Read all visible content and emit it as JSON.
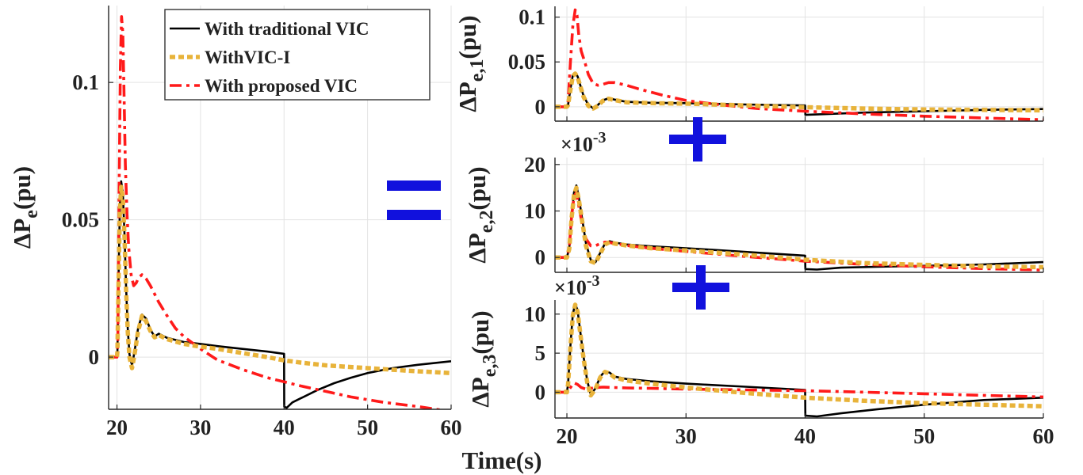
{
  "colors": {
    "traditional": "#000000",
    "vic_i": "#E8B33A",
    "proposed": "#FF1A1A",
    "operator": "#1111DD",
    "grid": "#E3E3E3",
    "axis": "#262626"
  },
  "operators": {
    "equals": "=",
    "plus1": "+",
    "plus2": "+"
  },
  "xlabel": "Time(s)",
  "chart_data": [
    {
      "id": "total",
      "type": "line",
      "title": "",
      "ylabel": "ΔP_e(pu)",
      "ylabel_base": "ΔP",
      "ylabel_sub": "e",
      "ylabel_tail": "(pu)",
      "exponent_label": "",
      "xlim": [
        19,
        60
      ],
      "ylim": [
        -0.019,
        0.128
      ],
      "xticks": [
        20,
        30,
        40,
        50,
        60
      ],
      "yticks": [
        0,
        0.05,
        0.1
      ],
      "ytick_labels": [
        "0",
        "0.05",
        "0.1"
      ],
      "xtick_labels": [
        "20",
        "30",
        "40",
        "50",
        "60"
      ],
      "grid": true,
      "legend": {
        "position": "top-right",
        "entries": [
          "With traditional VIC",
          "WithVIC-I",
          "With proposed VIC"
        ]
      },
      "series": [
        {
          "name": "With traditional VIC",
          "style": "solid",
          "x": [
            19,
            20,
            20.05,
            20.2,
            20.35,
            20.5,
            20.7,
            20.9,
            21.1,
            21.3,
            21.5,
            21.8,
            22.1,
            22.5,
            23.0,
            23.5,
            24.0,
            24.5,
            25.0,
            26,
            28,
            30,
            32,
            35,
            38,
            40,
            40.02,
            40.3,
            41,
            42,
            44,
            46,
            48,
            50,
            53,
            56,
            60
          ],
          "y": [
            0,
            0,
            0.002,
            0.03,
            0.055,
            0.064,
            0.06,
            0.045,
            0.025,
            0.01,
            0.001,
            -0.003,
            0.002,
            0.01,
            0.0155,
            0.014,
            0.01,
            0.0075,
            0.0085,
            0.007,
            0.0055,
            0.0048,
            0.004,
            0.003,
            0.002,
            0.0012,
            -0.018,
            -0.0185,
            -0.0165,
            -0.015,
            -0.012,
            -0.0095,
            -0.0075,
            -0.0058,
            -0.004,
            -0.0028,
            -0.0015
          ]
        },
        {
          "name": "WithVIC-I",
          "style": "dotted",
          "x": [
            19,
            20,
            20.05,
            20.2,
            20.35,
            20.5,
            20.7,
            20.9,
            21.1,
            21.3,
            21.5,
            21.8,
            22.1,
            22.5,
            23.0,
            23.5,
            24.0,
            24.5,
            25.0,
            26,
            28,
            30,
            32,
            35,
            38,
            40,
            42,
            45,
            50,
            55,
            60
          ],
          "y": [
            0,
            0,
            0.002,
            0.028,
            0.053,
            0.062,
            0.058,
            0.044,
            0.024,
            0.009,
            0.0,
            -0.004,
            0.001,
            0.009,
            0.015,
            0.013,
            0.0095,
            0.0072,
            0.008,
            0.0065,
            0.0048,
            0.0038,
            0.003,
            0.0015,
            0.0,
            -0.0012,
            -0.002,
            -0.003,
            -0.004,
            -0.005,
            -0.0058
          ]
        },
        {
          "name": "With proposed VIC",
          "style": "dashdot",
          "x": [
            19,
            20,
            20.1,
            20.25,
            20.4,
            20.55,
            20.7,
            20.85,
            21.0,
            21.2,
            21.4,
            21.7,
            22.0,
            22.3,
            22.6,
            23.0,
            23.5,
            24.0,
            25,
            26,
            27,
            28,
            30,
            32,
            35,
            38,
            40,
            42,
            45,
            48,
            52,
            56,
            60
          ],
          "y": [
            0,
            0,
            0.005,
            0.06,
            0.105,
            0.124,
            0.118,
            0.095,
            0.07,
            0.052,
            0.04,
            0.03,
            0.026,
            0.027,
            0.029,
            0.03,
            0.0285,
            0.026,
            0.02,
            0.015,
            0.0105,
            0.0075,
            0.003,
            -0.001,
            -0.0045,
            -0.0075,
            -0.009,
            -0.0105,
            -0.0125,
            -0.0145,
            -0.0165,
            -0.018,
            -0.0198
          ]
        }
      ]
    },
    {
      "id": "gen1",
      "type": "line",
      "title": "",
      "ylabel": "ΔP_e,1(pu)",
      "ylabel_base": "ΔP",
      "ylabel_sub": "e,1",
      "ylabel_tail": "(pu)",
      "exponent_label": "",
      "xlim": [
        19,
        60
      ],
      "ylim": [
        -0.016,
        0.112
      ],
      "xticks": [
        20,
        30,
        40,
        50,
        60
      ],
      "yticks": [
        0,
        0.05,
        0.1
      ],
      "ytick_labels": [
        "0",
        "0.05",
        "0.1"
      ],
      "xtick_labels": [],
      "grid": true,
      "series": [
        {
          "name": "With traditional VIC",
          "style": "solid",
          "x": [
            19,
            20,
            20.1,
            20.3,
            20.5,
            20.7,
            20.9,
            21.1,
            21.4,
            21.8,
            22.2,
            22.6,
            23.0,
            23.5,
            24.0,
            25,
            27,
            30,
            35,
            40,
            40.02,
            42,
            45,
            50,
            55,
            60
          ],
          "y": [
            0,
            0,
            0.002,
            0.02,
            0.035,
            0.038,
            0.034,
            0.025,
            0.012,
            0.002,
            -0.0015,
            0.002,
            0.007,
            0.0095,
            0.008,
            0.0055,
            0.0045,
            0.004,
            0.0025,
            0.0015,
            -0.009,
            -0.008,
            -0.0065,
            -0.005,
            -0.0035,
            -0.0025
          ]
        },
        {
          "name": "WithVIC-I",
          "style": "dotted",
          "x": [
            19,
            20,
            20.1,
            20.3,
            20.5,
            20.7,
            20.9,
            21.1,
            21.4,
            21.8,
            22.2,
            22.6,
            23.0,
            23.5,
            24.0,
            25,
            27,
            30,
            35,
            40,
            45,
            50,
            55,
            60
          ],
          "y": [
            0,
            0,
            0.002,
            0.019,
            0.034,
            0.037,
            0.033,
            0.024,
            0.011,
            0.001,
            -0.002,
            0.001,
            0.0065,
            0.009,
            0.0075,
            0.005,
            0.004,
            0.0035,
            0.0015,
            -0.0005,
            -0.002,
            -0.003,
            -0.0035,
            -0.004
          ]
        },
        {
          "name": "With proposed VIC",
          "style": "dashdot",
          "x": [
            19,
            20,
            20.1,
            20.3,
            20.5,
            20.7,
            20.85,
            21.0,
            21.2,
            21.5,
            21.8,
            22.2,
            22.6,
            23.0,
            23.5,
            24.0,
            25,
            26,
            28,
            30,
            33,
            36,
            40,
            45,
            50,
            55,
            60
          ],
          "y": [
            0,
            0,
            0.005,
            0.05,
            0.09,
            0.108,
            0.102,
            0.08,
            0.062,
            0.05,
            0.036,
            0.026,
            0.024,
            0.025,
            0.027,
            0.027,
            0.024,
            0.02,
            0.013,
            0.007,
            0.002,
            -0.002,
            -0.005,
            -0.008,
            -0.0105,
            -0.0125,
            -0.0145
          ]
        }
      ]
    },
    {
      "id": "gen2",
      "type": "line",
      "title": "",
      "ylabel": "ΔP_e,2(pu)",
      "ylabel_base": "ΔP",
      "ylabel_sub": "e,2",
      "ylabel_tail": "(pu)",
      "exponent_label": "×10",
      "exponent_power": "-3",
      "xlim": [
        19,
        60
      ],
      "ylim": [
        -3.2,
        21.5
      ],
      "xticks": [
        20,
        30,
        40,
        50,
        60
      ],
      "yticks": [
        0,
        10,
        20
      ],
      "ytick_labels": [
        "0",
        "10",
        "20"
      ],
      "xtick_labels": [],
      "grid": true,
      "series": [
        {
          "name": "With traditional VIC",
          "style": "solid",
          "x": [
            19,
            20,
            20.2,
            20.4,
            20.6,
            20.8,
            21.0,
            21.3,
            21.6,
            22.0,
            22.4,
            22.8,
            23.2,
            23.6,
            24.0,
            25,
            27,
            30,
            35,
            40,
            40.02,
            41,
            43,
            46,
            50,
            55,
            60
          ],
          "y": [
            0,
            0,
            2,
            9,
            14,
            15.5,
            13,
            8,
            3,
            -0.5,
            -1,
            1,
            3,
            3.5,
            3.2,
            2.8,
            2.4,
            2.0,
            1.2,
            0.4,
            -2.5,
            -2.6,
            -2.2,
            -2.0,
            -1.8,
            -1.5,
            -1.0
          ]
        },
        {
          "name": "WithVIC-I",
          "style": "dotted",
          "x": [
            19,
            20,
            20.2,
            20.4,
            20.6,
            20.8,
            21.0,
            21.3,
            21.6,
            22.0,
            22.4,
            22.8,
            23.2,
            23.6,
            24.0,
            25,
            27,
            30,
            35,
            40,
            45,
            50,
            55,
            60
          ],
          "y": [
            0,
            0,
            1.8,
            8.5,
            13.5,
            15,
            12.5,
            7.5,
            2.5,
            -0.8,
            -1.2,
            0.8,
            2.8,
            3.3,
            3.0,
            2.6,
            2.0,
            1.5,
            0.6,
            -0.5,
            -1.2,
            -1.6,
            -1.9,
            -2.1
          ]
        },
        {
          "name": "With proposed VIC",
          "style": "dashdot",
          "x": [
            19,
            20,
            20.2,
            20.4,
            20.6,
            20.8,
            21.0,
            21.3,
            21.6,
            22.0,
            22.4,
            22.8,
            23.2,
            23.6,
            24.0,
            25,
            27,
            30,
            35,
            40,
            45,
            50,
            55,
            60
          ],
          "y": [
            0,
            0,
            2,
            9,
            13,
            14,
            11,
            7,
            4,
            2.5,
            2.5,
            3.0,
            3.3,
            3.2,
            3.0,
            2.6,
            2.0,
            1.3,
            0.2,
            -0.8,
            -1.5,
            -2.0,
            -2.4,
            -2.7
          ]
        }
      ]
    },
    {
      "id": "gen3",
      "type": "line",
      "title": "",
      "ylabel": "ΔP_e,3(pu)",
      "ylabel_base": "ΔP",
      "ylabel_sub": "e,3",
      "ylabel_tail": "(pu)",
      "exponent_label": "×10",
      "exponent_power": "-3",
      "xlim": [
        19,
        60
      ],
      "ylim": [
        -3.3,
        11.8
      ],
      "xticks": [
        20,
        30,
        40,
        50,
        60
      ],
      "yticks": [
        0,
        5,
        10
      ],
      "ytick_labels": [
        "0",
        "5",
        "10"
      ],
      "xtick_labels": [
        "20",
        "30",
        "40",
        "50",
        "60"
      ],
      "grid": true,
      "series": [
        {
          "name": "With traditional VIC",
          "style": "solid",
          "x": [
            19,
            20,
            20.1,
            20.3,
            20.5,
            20.7,
            20.9,
            21.1,
            21.4,
            21.7,
            22.0,
            22.4,
            22.8,
            23.2,
            23.6,
            24.0,
            25,
            27,
            30,
            35,
            40,
            40.02,
            41,
            43,
            46,
            50,
            55,
            60
          ],
          "y": [
            0,
            0,
            1,
            6,
            10,
            11.3,
            10.5,
            8,
            4.5,
            1.5,
            -0.3,
            0.5,
            2.0,
            2.7,
            2.5,
            2.0,
            1.7,
            1.4,
            1.1,
            0.7,
            0.3,
            -3.0,
            -3.1,
            -2.7,
            -2.2,
            -1.6,
            -1.0,
            -0.7
          ]
        },
        {
          "name": "WithVIC-I",
          "style": "dotted",
          "x": [
            19,
            20,
            20.1,
            20.3,
            20.5,
            20.7,
            20.9,
            21.1,
            21.4,
            21.7,
            22.0,
            22.4,
            22.8,
            23.2,
            23.6,
            24.0,
            25,
            27,
            30,
            35,
            40,
            45,
            50,
            55,
            60
          ],
          "y": [
            0,
            0,
            1,
            5.8,
            9.8,
            11.2,
            10.3,
            7.8,
            4.3,
            1.3,
            -0.4,
            0.4,
            1.9,
            2.6,
            2.4,
            1.9,
            1.5,
            1.1,
            0.6,
            -0.1,
            -0.7,
            -1.1,
            -1.4,
            -1.6,
            -1.8
          ]
        },
        {
          "name": "With proposed VIC",
          "style": "dashdot",
          "x": [
            19,
            20,
            20.3,
            20.6,
            20.9,
            21.2,
            21.6,
            22.0,
            22.5,
            23.0,
            24,
            25,
            27,
            30,
            35,
            40,
            45,
            50,
            55,
            60
          ],
          "y": [
            0,
            0,
            0.6,
            1.2,
            1.0,
            0.6,
            0.4,
            0.5,
            0.6,
            0.65,
            0.6,
            0.55,
            0.5,
            0.4,
            0.3,
            0.2,
            0.0,
            -0.2,
            -0.4,
            -0.6
          ]
        }
      ]
    }
  ]
}
